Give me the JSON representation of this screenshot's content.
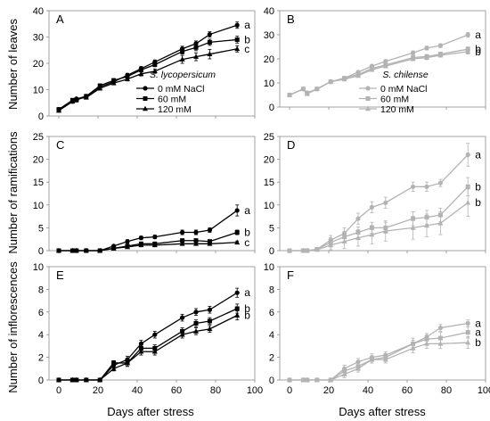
{
  "figure": {
    "ylabels": [
      "Number of leaves",
      "Number of ramifications",
      "Number of inflorescences"
    ],
    "xlabel": "Days after stress"
  },
  "colors": {
    "lycopersicum": "#000000",
    "chilense": "#b3b3b3",
    "axis": "#8c8c8c"
  },
  "chart_data": [
    {
      "type": "line",
      "panel": "A",
      "species": "S. lycopersicum",
      "xlim": [
        -5,
        100
      ],
      "ylim": [
        0,
        40
      ],
      "yticks": [
        0,
        10,
        20,
        30,
        40
      ],
      "xticks": [
        0,
        20,
        40,
        60,
        80,
        100
      ],
      "show_xtick_labels": false,
      "legend": "bottom-right",
      "x": [
        0,
        7,
        9,
        14,
        21,
        28,
        35,
        42,
        49,
        63,
        70,
        77,
        91
      ],
      "series": [
        {
          "name": "0 mM NaCl",
          "marker": "circle",
          "letter": "a",
          "values": [
            2.5,
            5.5,
            6.5,
            7.5,
            11,
            13,
            15.5,
            18,
            20.5,
            25.5,
            27.5,
            31,
            34.5
          ],
          "errors": [
            0.5,
            0.5,
            0.5,
            0.5,
            0.7,
            0.7,
            0.7,
            0.8,
            0.8,
            1.0,
            1.0,
            1.0,
            1.2
          ]
        },
        {
          "name": "60 mM",
          "marker": "square",
          "letter": "b",
          "values": [
            2.5,
            6,
            6,
            7.5,
            11.5,
            13.5,
            15,
            17.5,
            19.5,
            24.5,
            26,
            28,
            29
          ],
          "errors": [
            0.5,
            0.5,
            0.5,
            0.5,
            0.7,
            0.7,
            0.7,
            0.8,
            0.8,
            1.0,
            1.2,
            1.2,
            1.3
          ]
        },
        {
          "name": "120 mM",
          "marker": "triangle",
          "letter": "c",
          "values": [
            2,
            5.5,
            6.5,
            7,
            10.5,
            12.5,
            14,
            16,
            17,
            21.5,
            22.5,
            23.5,
            25.5
          ],
          "errors": [
            0.5,
            0.5,
            0.5,
            0.5,
            0.7,
            0.7,
            0.7,
            0.8,
            0.8,
            1.5,
            1.5,
            1.8,
            1.2
          ]
        }
      ]
    },
    {
      "type": "line",
      "panel": "B",
      "species": "S. chilense",
      "xlim": [
        -5,
        100
      ],
      "ylim": [
        0,
        40
      ],
      "yticks": [
        0,
        10,
        20,
        30,
        40
      ],
      "xticks": [
        0,
        20,
        40,
        60,
        80,
        100
      ],
      "show_xtick_labels": false,
      "legend": "right",
      "x": [
        0,
        7,
        9,
        14,
        21,
        28,
        35,
        42,
        49,
        63,
        70,
        77,
        91
      ],
      "series": [
        {
          "name": "0 mM NaCl",
          "marker": "circle",
          "letter": "a",
          "values": [
            5,
            7.5,
            6,
            7.5,
            10.5,
            12,
            14.5,
            17,
            19,
            22.5,
            24.5,
            25.5,
            30
          ],
          "errors": [
            0.5,
            0.5,
            0.5,
            0.5,
            0.5,
            0.5,
            0.5,
            0.7,
            0.7,
            0.8,
            0.8,
            0.8,
            1.0
          ]
        },
        {
          "name": "60 mM",
          "marker": "square",
          "letter": "b",
          "values": [
            5,
            7.5,
            5.5,
            7.5,
            10.5,
            12,
            13.5,
            16,
            17.5,
            20.5,
            21,
            22,
            24
          ],
          "errors": [
            0.5,
            0.5,
            0.5,
            0.5,
            0.5,
            0.5,
            0.5,
            0.7,
            0.7,
            0.8,
            0.8,
            0.8,
            1.0
          ]
        },
        {
          "name": "120 mM",
          "marker": "triangle",
          "letter": "b",
          "values": [
            5,
            7.5,
            5.5,
            7.5,
            10.5,
            11.5,
            13,
            15.5,
            17,
            20,
            20.5,
            21.5,
            23
          ],
          "errors": [
            0.5,
            0.5,
            0.5,
            0.5,
            0.5,
            0.5,
            0.5,
            0.7,
            0.7,
            0.8,
            0.8,
            0.8,
            1.0
          ]
        }
      ]
    },
    {
      "type": "line",
      "panel": "C",
      "xlim": [
        -5,
        100
      ],
      "ylim": [
        0,
        25
      ],
      "yticks": [
        0,
        5,
        10,
        15,
        20,
        25
      ],
      "xticks": [
        0,
        20,
        40,
        60,
        80,
        100
      ],
      "show_xtick_labels": false,
      "x": [
        0,
        7,
        9,
        14,
        21,
        28,
        35,
        42,
        49,
        63,
        70,
        77,
        91
      ],
      "series": [
        {
          "name": "0 mM NaCl",
          "marker": "circle",
          "letter": "a",
          "values": [
            0,
            0,
            0,
            0,
            0,
            1,
            2,
            2.8,
            3,
            4,
            4,
            4.5,
            8.8
          ],
          "errors": [
            0,
            0,
            0,
            0,
            0,
            0.3,
            0.4,
            0.4,
            0.4,
            0.5,
            0.5,
            0.5,
            1.2
          ]
        },
        {
          "name": "60 mM",
          "marker": "square",
          "letter": "b",
          "values": [
            0,
            0,
            0,
            0,
            0,
            0.5,
            1,
            1.5,
            1.5,
            2.2,
            2.2,
            2,
            4
          ],
          "errors": [
            0,
            0,
            0,
            0,
            0,
            0.2,
            0.3,
            0.3,
            0.3,
            0.4,
            0.4,
            0.4,
            0.5
          ]
        },
        {
          "name": "120 mM",
          "marker": "triangle",
          "letter": "c",
          "values": [
            0,
            0,
            0,
            0,
            0,
            0.5,
            0.8,
            1.2,
            1.2,
            1.5,
            1.5,
            1.5,
            1.8
          ],
          "errors": [
            0,
            0,
            0,
            0,
            0,
            0.2,
            0.3,
            0.3,
            0.3,
            0.3,
            0.3,
            0.3,
            0.3
          ]
        }
      ]
    },
    {
      "type": "line",
      "panel": "D",
      "xlim": [
        -5,
        100
      ],
      "ylim": [
        0,
        25
      ],
      "yticks": [
        0,
        5,
        10,
        15,
        20,
        25
      ],
      "xticks": [
        0,
        20,
        40,
        60,
        80,
        100
      ],
      "show_xtick_labels": false,
      "x": [
        0,
        7,
        9,
        14,
        21,
        28,
        35,
        42,
        49,
        63,
        70,
        77,
        91
      ],
      "series": [
        {
          "name": "0 mM NaCl",
          "marker": "circle",
          "letter": "a",
          "values": [
            0,
            0,
            0,
            0.3,
            2.3,
            3.8,
            7,
            9.5,
            10.5,
            14,
            14,
            14.8,
            21
          ],
          "errors": [
            0,
            0,
            0,
            0.2,
            1.0,
            1.2,
            1.2,
            1.2,
            1.2,
            1.0,
            1.0,
            0.8,
            2.5
          ]
        },
        {
          "name": "60 mM",
          "marker": "square",
          "letter": "b",
          "values": [
            0,
            0,
            0,
            0.3,
            1.8,
            3,
            4,
            5,
            5,
            7,
            7.3,
            7.8,
            14
          ],
          "errors": [
            0,
            0,
            0,
            0.2,
            1.0,
            1.2,
            1.2,
            1.2,
            1.2,
            1.5,
            1.5,
            1.5,
            2.0
          ]
        },
        {
          "name": "120 mM",
          "marker": "triangle",
          "letter": "b",
          "values": [
            0,
            0,
            0,
            0.2,
            1.2,
            2,
            2.8,
            3.5,
            4.3,
            5,
            5.5,
            6,
            10.5
          ],
          "errors": [
            0,
            0,
            0,
            0.2,
            1.0,
            1.5,
            1.8,
            2.0,
            2.2,
            2.5,
            2.5,
            2.5,
            3.0
          ]
        }
      ]
    },
    {
      "type": "line",
      "panel": "E",
      "xlim": [
        -5,
        100
      ],
      "ylim": [
        0,
        10
      ],
      "yticks": [
        0,
        2,
        4,
        6,
        8,
        10
      ],
      "xticks": [
        0,
        20,
        40,
        60,
        80,
        100
      ],
      "show_xtick_labels": true,
      "x": [
        0,
        7,
        9,
        14,
        21,
        28,
        35,
        42,
        49,
        63,
        70,
        77,
        91
      ],
      "series": [
        {
          "name": "0 mM NaCl",
          "marker": "circle",
          "letter": "a",
          "values": [
            0,
            0,
            0,
            0,
            0,
            1.3,
            1.8,
            3.2,
            4,
            5.5,
            6,
            6.2,
            7.7
          ],
          "errors": [
            0,
            0,
            0,
            0,
            0,
            0.2,
            0.3,
            0.3,
            0.3,
            0.3,
            0.3,
            0.3,
            0.4
          ]
        },
        {
          "name": "60 mM",
          "marker": "square",
          "letter": "b",
          "values": [
            0,
            0,
            0,
            0,
            0,
            1.5,
            1.5,
            2.8,
            2.8,
            4.3,
            5,
            5.2,
            6.3
          ],
          "errors": [
            0,
            0,
            0,
            0,
            0,
            0.2,
            0.3,
            0.3,
            0.3,
            0.3,
            0.3,
            0.3,
            0.4
          ]
        },
        {
          "name": "120 mM",
          "marker": "triangle",
          "letter": "b",
          "values": [
            0,
            0,
            0,
            0,
            0,
            1,
            1.5,
            2.5,
            2.5,
            4,
            4.3,
            4.5,
            5.7
          ],
          "errors": [
            0,
            0,
            0,
            0,
            0,
            0.2,
            0.3,
            0.3,
            0.3,
            0.3,
            0.3,
            0.3,
            0.4
          ]
        }
      ]
    },
    {
      "type": "line",
      "panel": "F",
      "xlim": [
        -5,
        100
      ],
      "ylim": [
        0,
        10
      ],
      "yticks": [
        0,
        2,
        4,
        6,
        8,
        10
      ],
      "xticks": [
        0,
        20,
        40,
        60,
        80,
        100
      ],
      "show_xtick_labels": true,
      "x": [
        0,
        7,
        9,
        14,
        21,
        28,
        35,
        42,
        49,
        63,
        70,
        77,
        91
      ],
      "series": [
        {
          "name": "0 mM NaCl",
          "marker": "circle",
          "letter": "a",
          "values": [
            0,
            0,
            0,
            0,
            0,
            1,
            1.6,
            2,
            2.2,
            3.2,
            3.8,
            4.6,
            5
          ],
          "errors": [
            0,
            0,
            0,
            0,
            0,
            0.3,
            0.3,
            0.3,
            0.3,
            0.3,
            0.3,
            0.3,
            0.3
          ]
        },
        {
          "name": "60 mM",
          "marker": "square",
          "letter": "a",
          "values": [
            0,
            0,
            0,
            0,
            0,
            0.8,
            1.2,
            1.8,
            2,
            3.2,
            3.6,
            3.7,
            4.2
          ],
          "errors": [
            0,
            0,
            0,
            0,
            0,
            0.3,
            0.3,
            0.3,
            0.3,
            0.5,
            0.5,
            0.5,
            0.5
          ]
        },
        {
          "name": "120 mM",
          "marker": "triangle",
          "letter": "b",
          "values": [
            0,
            0,
            0,
            0,
            0,
            0.5,
            1,
            1.8,
            1.8,
            2.8,
            3.2,
            3.2,
            3.3
          ],
          "errors": [
            0,
            0,
            0,
            0,
            0,
            0.3,
            0.3,
            0.3,
            0.3,
            0.4,
            0.4,
            0.4,
            0.5
          ]
        }
      ]
    }
  ]
}
